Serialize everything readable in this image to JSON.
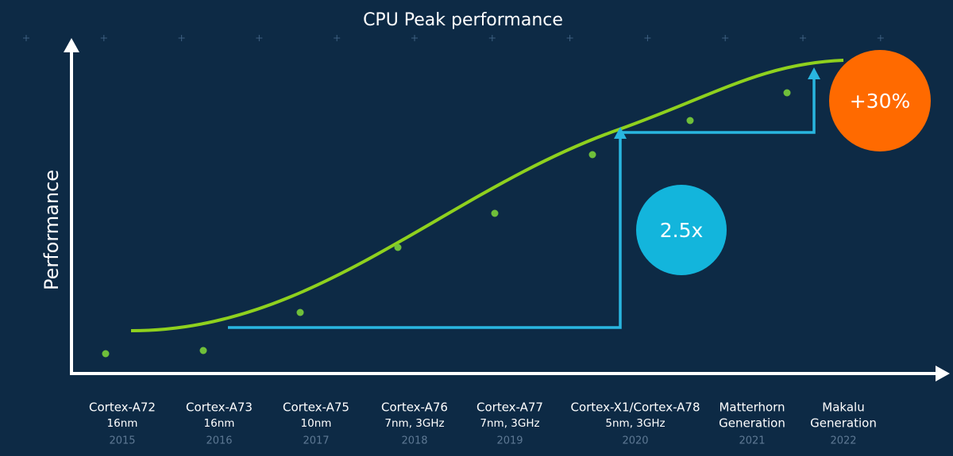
{
  "header": {
    "title": "CPU Peak performance"
  },
  "axis": {
    "y_label": "Performance"
  },
  "callouts": {
    "growth": "2.5x",
    "increase": "+30%"
  },
  "items": [
    {
      "lines": [
        "Cortex-A72",
        "16nm"
      ],
      "year": "2015"
    },
    {
      "lines": [
        "Cortex-A73",
        "16nm"
      ],
      "year": "2016"
    },
    {
      "lines": [
        "Cortex-A75",
        "10nm"
      ],
      "year": "2017"
    },
    {
      "lines": [
        "Cortex-A76",
        "7nm, 3GHz"
      ],
      "year": "2018"
    },
    {
      "lines": [
        "Cortex-A77",
        "7nm, 3GHz"
      ],
      "year": "2019"
    },
    {
      "lines": [
        "Cortex-X1/Cortex-A78",
        "5nm, 3GHz"
      ],
      "year": "2020"
    },
    {
      "lines": [
        "Matterhorn",
        "Generation"
      ],
      "year": "2021"
    },
    {
      "lines": [
        "Makalu",
        "Generation"
      ],
      "year": "2022"
    }
  ]
}
